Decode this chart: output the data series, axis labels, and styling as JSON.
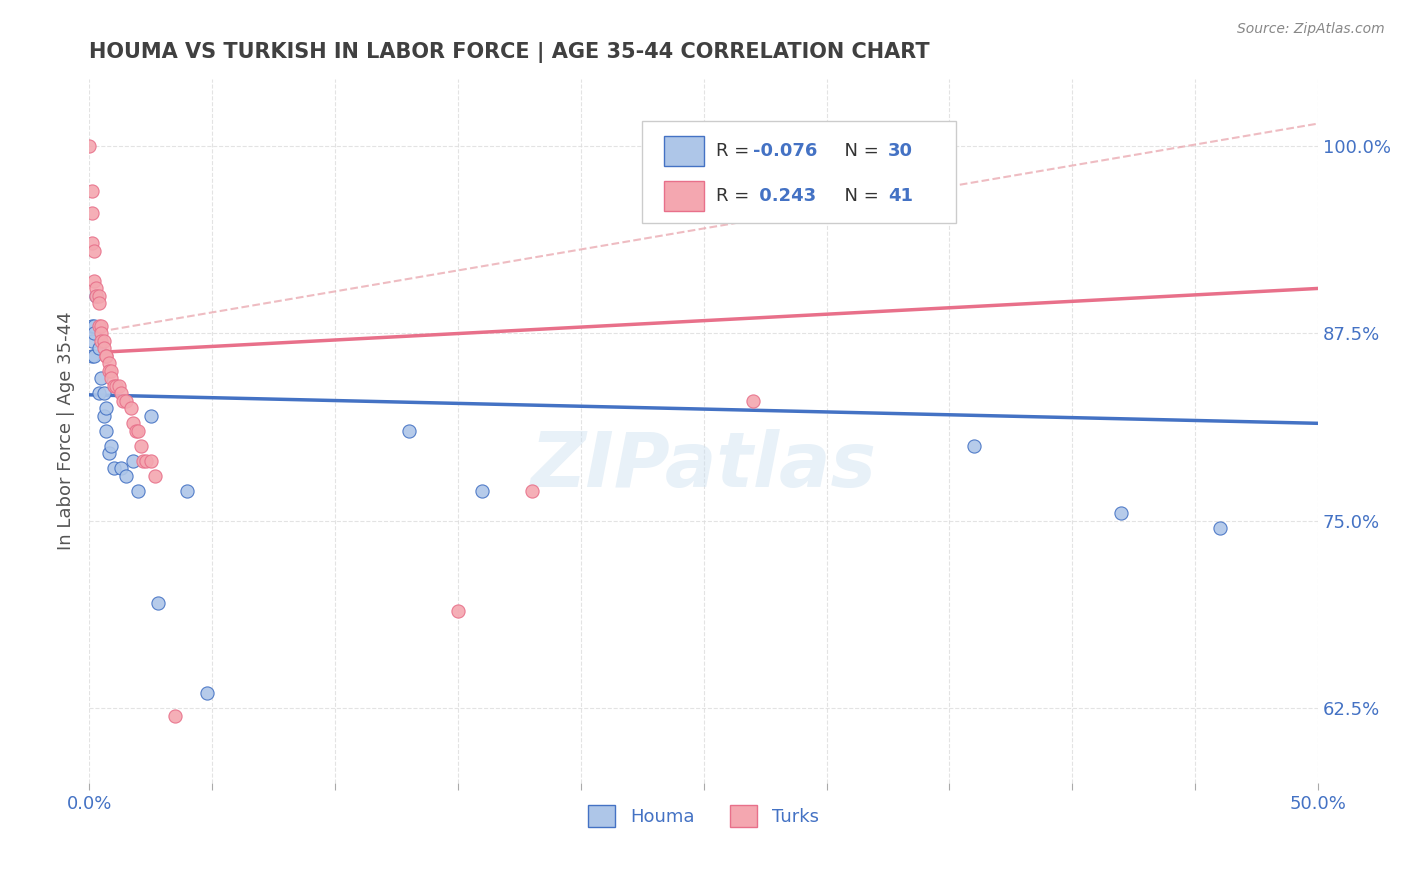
{
  "title": "HOUMA VS TURKISH IN LABOR FORCE | AGE 35-44 CORRELATION CHART",
  "source_text": "Source: ZipAtlas.com",
  "ylabel": "In Labor Force | Age 35-44",
  "xlim": [
    0.0,
    0.5
  ],
  "ylim": [
    0.575,
    1.045
  ],
  "xticks": [
    0.0,
    0.05,
    0.1,
    0.15,
    0.2,
    0.25,
    0.3,
    0.35,
    0.4,
    0.45,
    0.5
  ],
  "xtick_labels": [
    "0.0%",
    "",
    "",
    "",
    "",
    "",
    "",
    "",
    "",
    "",
    "50.0%"
  ],
  "ytick_labels": [
    "62.5%",
    "75.0%",
    "87.5%",
    "100.0%"
  ],
  "yticks": [
    0.625,
    0.75,
    0.875,
    1.0
  ],
  "houma_R": -0.076,
  "houma_N": 30,
  "turks_R": 0.243,
  "turks_N": 41,
  "houma_color": "#aec6e8",
  "turks_color": "#f4a7b0",
  "houma_line_color": "#4472c4",
  "turks_line_color": "#e8708a",
  "dash_line_color": "#e8a0a8",
  "background_color": "#ffffff",
  "grid_color": "#dddddd",
  "title_color": "#404040",
  "label_color": "#4472c4",
  "houma_x": [
    0.001,
    0.001,
    0.001,
    0.002,
    0.002,
    0.002,
    0.003,
    0.004,
    0.004,
    0.005,
    0.006,
    0.006,
    0.007,
    0.007,
    0.008,
    0.009,
    0.01,
    0.013,
    0.015,
    0.018,
    0.02,
    0.025,
    0.028,
    0.04,
    0.048,
    0.16,
    0.36,
    0.42,
    0.46,
    0.13
  ],
  "houma_y": [
    0.88,
    0.87,
    0.86,
    0.88,
    0.875,
    0.86,
    0.9,
    0.865,
    0.835,
    0.845,
    0.835,
    0.82,
    0.825,
    0.81,
    0.795,
    0.8,
    0.785,
    0.785,
    0.78,
    0.79,
    0.77,
    0.82,
    0.695,
    0.77,
    0.635,
    0.77,
    0.8,
    0.755,
    0.745,
    0.81
  ],
  "turks_x": [
    0.0,
    0.001,
    0.001,
    0.001,
    0.002,
    0.002,
    0.003,
    0.003,
    0.004,
    0.004,
    0.004,
    0.005,
    0.005,
    0.005,
    0.006,
    0.006,
    0.007,
    0.007,
    0.008,
    0.008,
    0.009,
    0.009,
    0.01,
    0.011,
    0.012,
    0.013,
    0.014,
    0.015,
    0.017,
    0.018,
    0.019,
    0.02,
    0.021,
    0.022,
    0.023,
    0.025,
    0.027,
    0.035,
    0.15,
    0.27,
    0.18
  ],
  "turks_y": [
    1.0,
    0.97,
    0.955,
    0.935,
    0.93,
    0.91,
    0.905,
    0.9,
    0.9,
    0.895,
    0.88,
    0.88,
    0.875,
    0.87,
    0.87,
    0.865,
    0.86,
    0.86,
    0.855,
    0.85,
    0.85,
    0.845,
    0.84,
    0.84,
    0.84,
    0.835,
    0.83,
    0.83,
    0.825,
    0.815,
    0.81,
    0.81,
    0.8,
    0.79,
    0.79,
    0.79,
    0.78,
    0.62,
    0.69,
    0.83,
    0.77
  ],
  "watermark_text": "ZIPatlas",
  "legend_box_color_houma": "#aec6e8",
  "legend_box_color_turks": "#f4a7b0",
  "houma_trendline": [
    0.0,
    0.5,
    0.834,
    0.815
  ],
  "turks_trendline": [
    0.0,
    0.5,
    0.862,
    0.905
  ],
  "dash_line": [
    0.0,
    0.5,
    0.875,
    1.015
  ]
}
